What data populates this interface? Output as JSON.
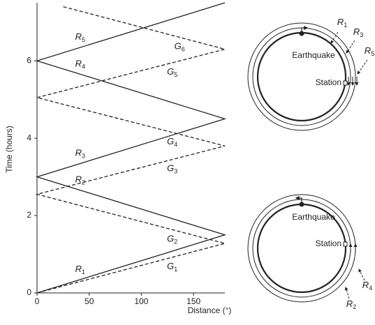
{
  "chart_data": {
    "type": "line",
    "x_label": "Distance (°)",
    "y_label": "Time (hours)",
    "xlim": [
      0,
      180
    ],
    "ylim": [
      0,
      7.5
    ],
    "xticks": [
      0,
      50,
      100,
      150
    ],
    "yticks": [
      0,
      2,
      4,
      6
    ],
    "series": [
      {
        "color": "#222222",
        "dash": false,
        "x": [
          0,
          180,
          0,
          180,
          0,
          180
        ],
        "values": [
          0,
          1.5,
          3.0,
          4.5,
          6.0,
          7.5
        ],
        "labels": [
          "R1",
          "R2",
          "R3",
          "R4",
          "R5"
        ]
      },
      {
        "color": "#222222",
        "dash": true,
        "x": [
          0,
          180,
          0,
          180,
          0,
          180,
          25
        ],
        "values": [
          0,
          1.28,
          2.55,
          3.8,
          5.05,
          6.3,
          7.4
        ],
        "labels": [
          "G1",
          "G2",
          "G3",
          "G4",
          "G5",
          "G6"
        ]
      }
    ]
  },
  "diagrams": [
    {
      "earthquake": "Earthquake",
      "station": "Station",
      "labels": [
        "R1",
        "R3",
        "R5"
      ]
    },
    {
      "earthquake": "Earthquake",
      "station": "Station",
      "labels": [
        "R2",
        "R4"
      ]
    }
  ]
}
